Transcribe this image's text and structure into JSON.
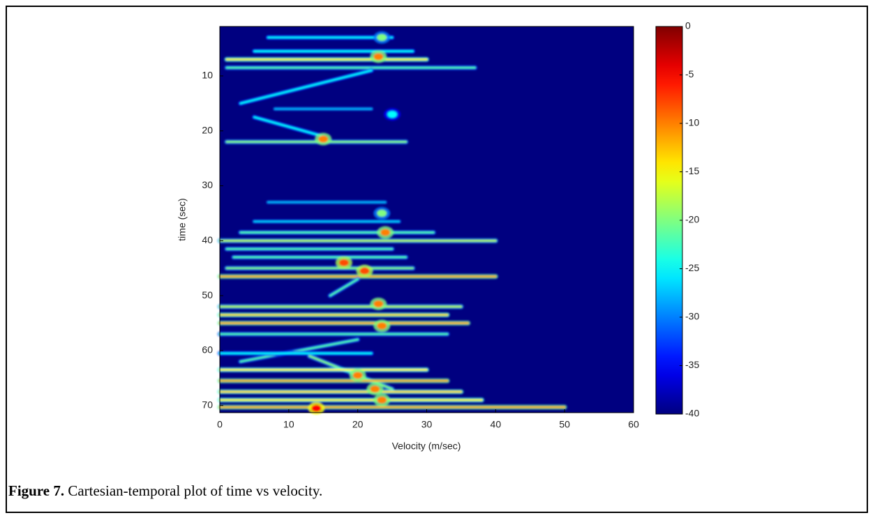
{
  "chart_data": {
    "type": "heatmap",
    "colormap": "jet",
    "xlabel": "Velocity (m/sec)",
    "ylabel": "time (sec)",
    "xlim": [
      0,
      60
    ],
    "xticks": [
      0,
      10,
      20,
      30,
      40,
      50,
      60
    ],
    "ylim": [
      1,
      71.3
    ],
    "yticks": [
      10,
      20,
      30,
      40,
      50,
      60,
      70
    ],
    "y_inverted": true,
    "clim": [
      -40,
      0
    ],
    "cticks": [
      0,
      -5,
      -10,
      -15,
      -20,
      -25,
      -30,
      -35,
      -40
    ],
    "background": -40,
    "segments": [
      {
        "x": [
          7,
          25
        ],
        "y": [
          3,
          3
        ],
        "value": -25
      },
      {
        "x": [
          5,
          28
        ],
        "y": [
          5.5,
          5.5
        ],
        "value": -25
      },
      {
        "x": [
          1,
          30
        ],
        "y": [
          7,
          7
        ],
        "value": -15
      },
      {
        "x": [
          1,
          37
        ],
        "y": [
          8.5,
          8.5
        ],
        "value": -22
      },
      {
        "x": [
          22,
          3
        ],
        "y": [
          9,
          15
        ],
        "value": -25
      },
      {
        "x": [
          8,
          22
        ],
        "y": [
          16,
          16
        ],
        "value": -28
      },
      {
        "x": [
          5,
          15
        ],
        "y": [
          17.5,
          21
        ],
        "value": -25
      },
      {
        "x": [
          1,
          27
        ],
        "y": [
          22,
          22
        ],
        "value": -20
      },
      {
        "x": [
          7,
          24
        ],
        "y": [
          33,
          33
        ],
        "value": -28
      },
      {
        "x": [
          5,
          26
        ],
        "y": [
          36.5,
          36.5
        ],
        "value": -27
      },
      {
        "x": [
          3,
          31
        ],
        "y": [
          38.5,
          38.5
        ],
        "value": -22
      },
      {
        "x": [
          0,
          40
        ],
        "y": [
          40,
          40
        ],
        "value": -18
      },
      {
        "x": [
          1,
          25
        ],
        "y": [
          41.5,
          41.5
        ],
        "value": -22
      },
      {
        "x": [
          2,
          27
        ],
        "y": [
          43,
          43
        ],
        "value": -22
      },
      {
        "x": [
          1,
          28
        ],
        "y": [
          45,
          45
        ],
        "value": -20
      },
      {
        "x": [
          0,
          40
        ],
        "y": [
          46.5,
          46.5
        ],
        "value": -12
      },
      {
        "x": [
          20,
          16
        ],
        "y": [
          47,
          50
        ],
        "value": -22
      },
      {
        "x": [
          0,
          35
        ],
        "y": [
          52,
          52
        ],
        "value": -18
      },
      {
        "x": [
          0,
          33
        ],
        "y": [
          53.5,
          53.5
        ],
        "value": -14
      },
      {
        "x": [
          0,
          36
        ],
        "y": [
          55,
          55
        ],
        "value": -12
      },
      {
        "x": [
          0,
          33
        ],
        "y": [
          57,
          57
        ],
        "value": -22
      },
      {
        "x": [
          20,
          3
        ],
        "y": [
          58,
          62
        ],
        "value": -22
      },
      {
        "x": [
          0,
          22
        ],
        "y": [
          60.5,
          60.5
        ],
        "value": -25
      },
      {
        "x": [
          13,
          25
        ],
        "y": [
          61,
          67
        ],
        "value": -20
      },
      {
        "x": [
          0,
          30
        ],
        "y": [
          63.5,
          63.5
        ],
        "value": -15
      },
      {
        "x": [
          0,
          33
        ],
        "y": [
          65.5,
          65.5
        ],
        "value": -12
      },
      {
        "x": [
          0,
          35
        ],
        "y": [
          67.5,
          67.5
        ],
        "value": -14
      },
      {
        "x": [
          0,
          38
        ],
        "y": [
          69,
          69
        ],
        "value": -15
      },
      {
        "x": [
          0,
          50
        ],
        "y": [
          70.3,
          70.3
        ],
        "value": -12
      }
    ],
    "blobs": [
      {
        "x": 23.5,
        "y": 3,
        "value": -20
      },
      {
        "x": 23,
        "y": 6.5,
        "value": -10
      },
      {
        "x": 25,
        "y": 17,
        "value": -25
      },
      {
        "x": 15,
        "y": 21.5,
        "value": -10
      },
      {
        "x": 23.5,
        "y": 35,
        "value": -20
      },
      {
        "x": 24,
        "y": 38.5,
        "value": -10
      },
      {
        "x": 18,
        "y": 44,
        "value": -8
      },
      {
        "x": 21,
        "y": 45.5,
        "value": -8
      },
      {
        "x": 23,
        "y": 51.5,
        "value": -10
      },
      {
        "x": 23.5,
        "y": 55.5,
        "value": -10
      },
      {
        "x": 20,
        "y": 64.5,
        "value": -10
      },
      {
        "x": 22.5,
        "y": 67,
        "value": -10
      },
      {
        "x": 23.5,
        "y": 69,
        "value": -10
      },
      {
        "x": 14,
        "y": 70.5,
        "value": -5
      }
    ]
  },
  "caption": {
    "label": "Figure 7.",
    "text": "Cartesian-temporal plot of time vs velocity."
  }
}
